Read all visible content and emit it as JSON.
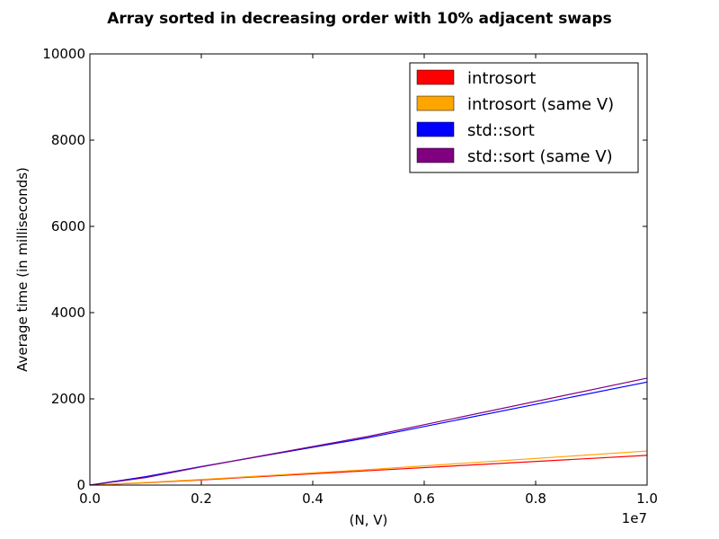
{
  "chart_data": {
    "type": "line",
    "title": "Array sorted in decreasing order with 10% adjacent swaps",
    "xlabel": "(N, V)",
    "ylabel": "Average time (in milliseconds)",
    "x_offset_label": "1e7",
    "xlim": [
      0,
      1.0
    ],
    "ylim": [
      0,
      10000
    ],
    "x_ticks": [
      0.0,
      0.2,
      0.4,
      0.6,
      0.8,
      1.0
    ],
    "x_tick_labels": [
      "0.0",
      "0.2",
      "0.4",
      "0.6",
      "0.8",
      "1.0"
    ],
    "y_ticks": [
      0,
      2000,
      4000,
      6000,
      8000,
      10000
    ],
    "y_tick_labels": [
      "0",
      "2000",
      "4000",
      "6000",
      "8000",
      "10000"
    ],
    "grid": false,
    "legend_position": "top-right",
    "series": [
      {
        "name": "introsort",
        "color": "#ff0000",
        "x": [
          0,
          0.1,
          0.2,
          0.5,
          1.0
        ],
        "y": [
          0,
          55,
          120,
          335,
          690
        ]
      },
      {
        "name": "introsort (same V)",
        "color": "#ffa500",
        "x": [
          0,
          0.1,
          0.2,
          0.5,
          1.0
        ],
        "y": [
          0,
          60,
          130,
          360,
          790
        ]
      },
      {
        "name": "std::sort",
        "color": "#0000ff",
        "x": [
          0,
          0.1,
          0.2,
          0.5,
          1.0
        ],
        "y": [
          0,
          195,
          430,
          1100,
          2390
        ]
      },
      {
        "name": "std::sort (same V)",
        "color": "#800080",
        "x": [
          0,
          0.1,
          0.2,
          0.5,
          1.0
        ],
        "y": [
          0,
          175,
          425,
          1130,
          2480
        ]
      }
    ]
  }
}
